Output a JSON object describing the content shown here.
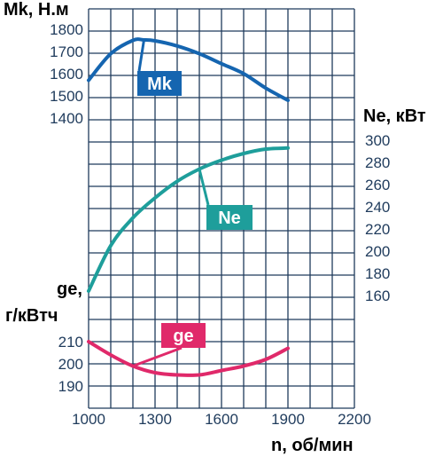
{
  "chart_data": {
    "type": "line",
    "colors": {
      "mk": "#1565b0",
      "ne": "#1e9e9b",
      "ge": "#e0296a",
      "grid": "#1f3b5c",
      "text": "#1f3b5c"
    },
    "x_axis": {
      "label": "n, об/мин",
      "range": [
        1000,
        2200
      ],
      "ticks": [
        1000,
        1300,
        1600,
        1900,
        2200
      ]
    },
    "mk_axis": {
      "label": "Mk, Н.м",
      "ticks": [
        1400,
        1500,
        1600,
        1700,
        1800
      ]
    },
    "ne_axis": {
      "label": "Ne, кВт",
      "ticks": [
        160,
        180,
        200,
        220,
        240,
        260,
        280,
        300
      ]
    },
    "ge_axis": {
      "label_line1": "ge,",
      "label_line2": "г/кВтч",
      "ticks": [
        190,
        200,
        210
      ]
    },
    "series": [
      {
        "name": "Mk",
        "x": [
          1000,
          1100,
          1200,
          1250,
          1300,
          1400,
          1500,
          1600,
          1700,
          1800,
          1900
        ],
        "y": [
          1570,
          1690,
          1750,
          1752,
          1748,
          1725,
          1690,
          1645,
          1600,
          1535,
          1480
        ]
      },
      {
        "name": "Ne",
        "x": [
          1000,
          1100,
          1200,
          1300,
          1400,
          1500,
          1600,
          1700,
          1800,
          1900
        ],
        "y": [
          164,
          205,
          230,
          248,
          263,
          274,
          282,
          288,
          292,
          293
        ]
      },
      {
        "name": "ge",
        "x": [
          1000,
          1100,
          1200,
          1300,
          1400,
          1500,
          1600,
          1700,
          1800,
          1900
        ],
        "y": [
          210,
          204,
          199,
          196,
          195,
          195,
          197,
          199,
          202,
          207
        ]
      }
    ]
  }
}
